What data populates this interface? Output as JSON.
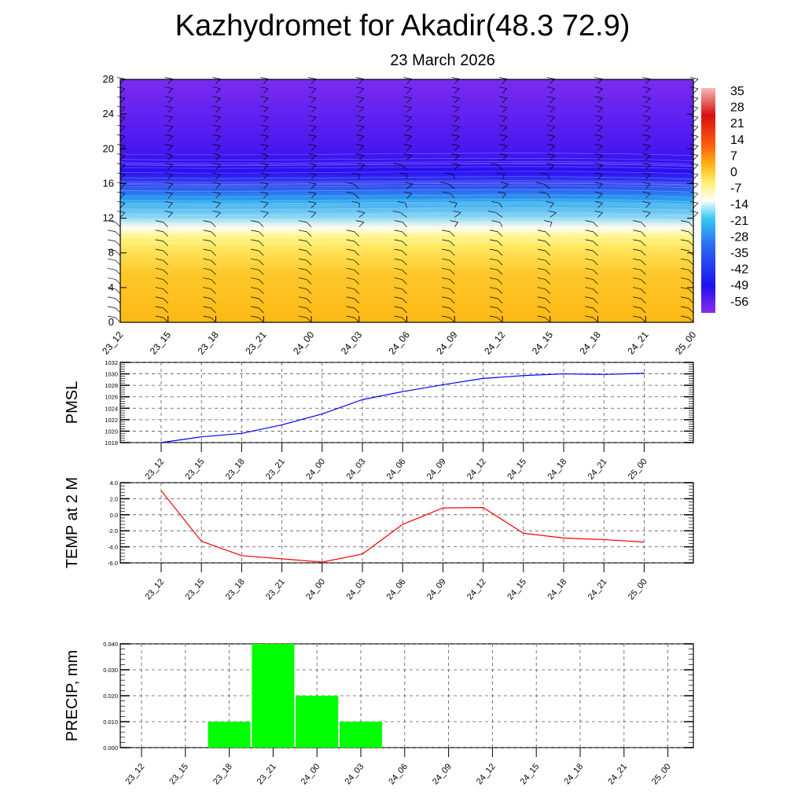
{
  "title": "Kazhydromet for Akadir(48.3 72.9)",
  "subtitle": "23 March 2026",
  "chart_data": [
    {
      "type": "heatmap",
      "name": "cross-section",
      "description_of_axes": "time vs height",
      "x_tick_labels": [
        "23_12",
        "23_15",
        "23_18",
        "23_21",
        "24_00",
        "24_03",
        "24_06",
        "24_09",
        "24_12",
        "24_15",
        "24_18",
        "24_21",
        "25_00"
      ],
      "y_ticks": [
        0,
        4,
        8,
        12,
        16,
        20,
        24,
        28
      ],
      "ylim": [
        0,
        28
      ],
      "colorbar_labels": [
        "35",
        "28",
        "21",
        "14",
        "7",
        "0",
        "-7",
        "-14",
        "-21",
        "-28",
        "-35",
        "-42",
        "-49",
        "-56"
      ],
      "colorbar_range": [
        -60,
        38
      ]
    },
    {
      "type": "line",
      "ylabel": "PMSL",
      "x_tick_labels": [
        "23_12",
        "23_15",
        "23_18",
        "23_21",
        "24_00",
        "24_03",
        "24_06",
        "24_09",
        "24_12",
        "24_15",
        "24_18",
        "24_21",
        "25_00"
      ],
      "y_ticks": [
        "1018",
        "1020",
        "1022",
        "1024",
        "1026",
        "1028",
        "1030",
        "1032"
      ],
      "ylim": [
        1018,
        1032
      ],
      "values": [
        1018.0,
        1019.0,
        1019.6,
        1021.1,
        1023.0,
        1025.5,
        1026.9,
        1028.1,
        1029.2,
        1029.7,
        1030.0,
        1029.9,
        1030.1
      ],
      "color": "#0000ff"
    },
    {
      "type": "line",
      "ylabel": "TEMP at 2 M",
      "x_tick_labels": [
        "23_12",
        "23_15",
        "23_18",
        "23_21",
        "24_00",
        "24_03",
        "24_06",
        "24_09",
        "24_12",
        "24_15",
        "24_18",
        "24_21",
        "25_00"
      ],
      "y_ticks": [
        "-6.0",
        "-4.0",
        "-2.0",
        "0.0",
        "2.0",
        "4.0"
      ],
      "ylim": [
        -6,
        4
      ],
      "values": [
        3.0,
        -3.3,
        -5.1,
        -5.5,
        -5.9,
        -4.9,
        -1.2,
        0.85,
        0.9,
        -2.3,
        -2.9,
        -3.1,
        -3.4
      ],
      "color": "#ff0000"
    },
    {
      "type": "bar",
      "ylabel": "PRECIP, mm",
      "x_tick_labels": [
        "23_12",
        "23_15",
        "23_18",
        "23_21",
        "24_00",
        "24_03",
        "24_06",
        "24_09",
        "24_12",
        "24_15",
        "24_18",
        "24_21",
        "25_00"
      ],
      "y_ticks": [
        "0.000",
        "0.010",
        "0.020",
        "0.030",
        "0.040"
      ],
      "ylim": [
        0,
        0.04
      ],
      "values": [
        0,
        0,
        0.01,
        0.04,
        0.02,
        0.01,
        0,
        0,
        0,
        0,
        0,
        0,
        0
      ],
      "color": "#00ff00"
    }
  ]
}
